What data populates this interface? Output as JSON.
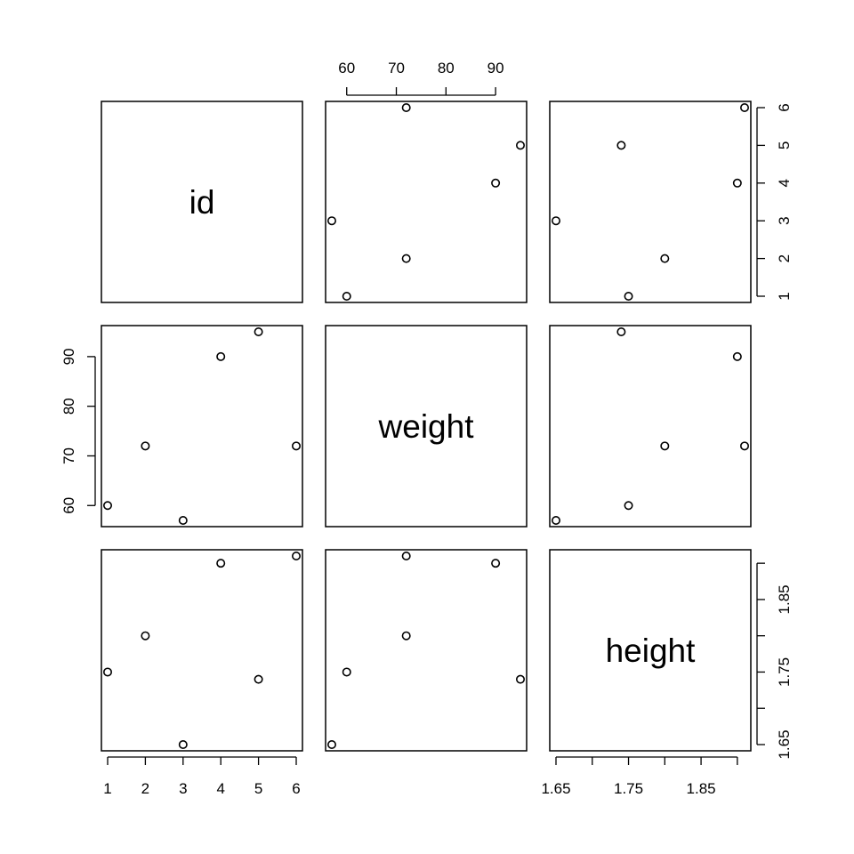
{
  "chart_data": {
    "type": "scatter",
    "plot_kind": "scatterplot matrix (pairs)",
    "variables": [
      "id",
      "weight",
      "height"
    ],
    "observations": {
      "id": [
        1,
        2,
        3,
        4,
        5,
        6
      ],
      "weight": [
        60,
        72,
        57,
        90,
        95,
        72
      ],
      "height": [
        1.75,
        1.8,
        1.65,
        1.9,
        1.74,
        1.91
      ]
    },
    "axes": {
      "id": {
        "range": [
          1,
          6
        ],
        "ticks": [
          1,
          2,
          3,
          4,
          5,
          6
        ],
        "tick_labels": [
          "1",
          "2",
          "3",
          "4",
          "5",
          "6"
        ]
      },
      "weight": {
        "range": [
          57,
          95
        ],
        "ticks": [
          60,
          70,
          80,
          90
        ],
        "tick_labels": [
          "60",
          "70",
          "80",
          "90"
        ]
      },
      "height": {
        "range": [
          1.65,
          1.91
        ],
        "ticks": [
          1.65,
          1.7,
          1.75,
          1.8,
          1.85,
          1.9
        ],
        "tick_labels": [
          "1.65",
          "",
          "1.75",
          "",
          "1.85",
          ""
        ]
      }
    },
    "tick_placement": {
      "top": "weight",
      "right": [
        "id",
        "height"
      ],
      "left": "weight",
      "bottom": [
        "id",
        "height"
      ]
    },
    "marker": "open-circle",
    "grid": false,
    "legend": "none"
  }
}
